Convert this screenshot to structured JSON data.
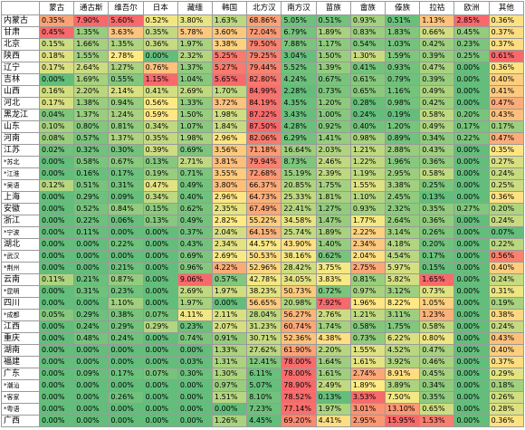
{
  "table": {
    "columns": [
      "蒙古",
      "通古斯",
      "维吾尔",
      "日本",
      "藏缅",
      "韩国",
      "北方汉",
      "南方汉",
      "苗族",
      "畲族",
      "傣族",
      "拉祜",
      "欧洲",
      "其他"
    ],
    "rows": [
      {
        "label": "内蒙古",
        "cells": [
          "0.35%",
          "7.90%",
          "5.60%",
          "0.52%",
          "3.80%",
          "1.63%",
          "68.86%",
          "5.05%",
          "0.51%",
          "0.93%",
          "0.51%",
          "1.13%",
          "2.85%",
          "0.36%"
        ]
      },
      {
        "label": "甘肃",
        "cells": [
          "0.45%",
          "1.35%",
          "3.63%",
          "0.35%",
          "5.78%",
          "3.60%",
          "72.04%",
          "6.79%",
          "1.89%",
          "0.83%",
          "1.83%",
          "0.66%",
          "0.45%",
          "0.37%"
        ]
      },
      {
        "label": "北京",
        "cells": [
          "0.15%",
          "1.66%",
          "1.35%",
          "0.36%",
          "1.97%",
          "3.38%",
          "79.50%",
          "7.88%",
          "1.17%",
          "0.54%",
          "1.03%",
          "0.42%",
          "0.23%",
          "0.37%"
        ]
      },
      {
        "label": "陕西",
        "cells": [
          "0.18%",
          "1.55%",
          "2.78%",
          "0.00%",
          "2.32%",
          "5.25%",
          "79.25%",
          "3.04%",
          "1.50%",
          "1.30%",
          "1.59%",
          "0.39%",
          "0.25%",
          "0.61%"
        ]
      },
      {
        "label": "辽宁",
        "cells": [
          "0.17%",
          "2.64%",
          "1.27%",
          "0.76%",
          "1.37%",
          "5.27%",
          "79.44%",
          "5.52%",
          "1.39%",
          "0.41%",
          "0.93%",
          "0.47%",
          "0.00%",
          "0.36%"
        ]
      },
      {
        "label": "吉林",
        "cells": [
          "0.00%",
          "1.69%",
          "0.55%",
          "1.15%",
          "1.04%",
          "5.65%",
          "82.80%",
          "4.24%",
          "0.67%",
          "0.61%",
          "0.79%",
          "0.39%",
          "0.00%",
          "0.40%"
        ]
      },
      {
        "label": "山西",
        "cells": [
          "0.16%",
          "2.20%",
          "2.14%",
          "0.41%",
          "2.69%",
          "1.70%",
          "84.99%",
          "2.28%",
          "0.73%",
          "0.65%",
          "1.16%",
          "0.49%",
          "0.00%",
          "0.41%"
        ]
      },
      {
        "label": "河北",
        "cells": [
          "0.17%",
          "1.38%",
          "0.94%",
          "0.56%",
          "1.33%",
          "3.72%",
          "84.19%",
          "4.35%",
          "1.20%",
          "0.28%",
          "0.98%",
          "0.42%",
          "0.00%",
          "0.47%"
        ]
      },
      {
        "label": "黑龙江",
        "cells": [
          "0.04%",
          "1.37%",
          "1.24%",
          "0.59%",
          "1.50%",
          "1.98%",
          "87.22%",
          "3.43%",
          "1.00%",
          "0.24%",
          "0.19%",
          "0.58%",
          "0.20%",
          "0.43%"
        ]
      },
      {
        "label": "山东",
        "cells": [
          "0.10%",
          "0.80%",
          "0.81%",
          "0.34%",
          "1.07%",
          "1.84%",
          "87.50%",
          "4.28%",
          "0.92%",
          "0.40%",
          "1.20%",
          "0.49%",
          "0.17%",
          "0.17%"
        ]
      },
      {
        "label": "河南",
        "cells": [
          "0.08%",
          "0.57%",
          "1.37%",
          "0.35%",
          "1.98%",
          "2.96%",
          "82.06%",
          "6.29%",
          "1.41%",
          "0.98%",
          "0.89%",
          "0.34%",
          "0.22%",
          "0.47%"
        ]
      },
      {
        "label": "江苏",
        "cells": [
          "0.02%",
          "0.32%",
          "0.30%",
          "0.39%",
          "0.69%",
          "3.56%",
          "71.18%",
          "16.64%",
          "2.03%",
          "1.21%",
          "2.88%",
          "0.43%",
          "0.00%",
          "0.35%"
        ]
      },
      {
        "label": "*苏北",
        "cells": [
          "0.00%",
          "0.58%",
          "0.67%",
          "0.13%",
          "2.71%",
          "3.81%",
          "79.94%",
          "8.73%",
          "2.46%",
          "1.22%",
          "1.96%",
          "0.36%",
          "0.00%",
          "0.27%"
        ]
      },
      {
        "label": "*江淮",
        "cells": [
          "0.00%",
          "0.16%",
          "0.17%",
          "0.19%",
          "0.71%",
          "3.55%",
          "72.68%",
          "15.19%",
          "2.39%",
          "1.19%",
          "2.95%",
          "0.58%",
          "0.00%",
          "0.24%"
        ]
      },
      {
        "label": "*吴语",
        "cells": [
          "0.12%",
          "0.51%",
          "0.31%",
          "0.47%",
          "0.49%",
          "3.80%",
          "66.37%",
          "20.85%",
          "1.75%",
          "1.55%",
          "3.38%",
          "0.25%",
          "0.00%",
          "0.25%"
        ]
      },
      {
        "label": "上海",
        "cells": [
          "0.00%",
          "0.29%",
          "0.09%",
          "0.34%",
          "0.40%",
          "2.96%",
          "64.73%",
          "25.33%",
          "1.81%",
          "1.10%",
          "2.45%",
          "0.13%",
          "0.00%",
          "0.36%"
        ]
      },
      {
        "label": "安徽",
        "cells": [
          "0.00%",
          "0.52%",
          "0.84%",
          "0.15%",
          "0.62%",
          "2.35%",
          "67.49%",
          "22.41%",
          "1.27%",
          "0.93%",
          "2.32%",
          "0.35%",
          "0.27%",
          "0.20%"
        ]
      },
      {
        "label": "浙江",
        "cells": [
          "0.00%",
          "0.22%",
          "0.06%",
          "0.13%",
          "0.49%",
          "2.82%",
          "55.22%",
          "34.58%",
          "1.47%",
          "1.77%",
          "2.64%",
          "0.36%",
          "0.00%",
          "0.24%"
        ]
      },
      {
        "label": "*宁波",
        "cells": [
          "0.00%",
          "0.11%",
          "0.00%",
          "0.00%",
          "0.37%",
          "2.04%",
          "64.15%",
          "25.74%",
          "1.89%",
          "2.22%",
          "3.14%",
          "0.26%",
          "0.00%",
          "0.07%"
        ]
      },
      {
        "label": "湖北",
        "cells": [
          "0.00%",
          "0.00%",
          "0.22%",
          "0.00%",
          "0.43%",
          "2.34%",
          "44.57%",
          "43.90%",
          "1.40%",
          "2.34%",
          "4.18%",
          "0.20%",
          "0.00%",
          "0.22%"
        ]
      },
      {
        "label": "*武汉",
        "cells": [
          "0.00%",
          "0.00%",
          "0.00%",
          "0.00%",
          "0.69%",
          "2.69%",
          "50.53%",
          "38.16%",
          "0.62%",
          "2.04%",
          "4.54%",
          "0.17%",
          "0.00%",
          "0.56%"
        ]
      },
      {
        "label": "*荆州",
        "cells": [
          "0.00%",
          "0.00%",
          "0.21%",
          "0.00%",
          "0.96%",
          "4.22%",
          "52.96%",
          "28.42%",
          "3.75%",
          "2.75%",
          "5.97%",
          "0.15%",
          "0.00%",
          "0.40%"
        ]
      },
      {
        "label": "云南",
        "cells": [
          "0.11%",
          "0.21%",
          "0.87%",
          "0.00%",
          "9.06%",
          "0.57%",
          "42.78%",
          "34.05%",
          "3.83%",
          "0.81%",
          "5.82%",
          "1.65%",
          "0.00%",
          "0.24%"
        ]
      },
      {
        "label": "*昆明",
        "cells": [
          "0.00%",
          "0.31%",
          "0.23%",
          "0.00%",
          "2.69%",
          "1.97%",
          "38.23%",
          "50.73%",
          "0.72%",
          "0.97%",
          "3.12%",
          "0.73%",
          "0.00%",
          "0.31%"
        ]
      },
      {
        "label": "四川",
        "cells": [
          "0.00%",
          "0.00%",
          "1.10%",
          "0.00%",
          "1.97%",
          "0.00%",
          "56.65%",
          "20.98%",
          "7.92%",
          "1.96%",
          "8.22%",
          "1.05%",
          "0.00%",
          "0.19%"
        ]
      },
      {
        "label": "*成都",
        "cells": [
          "0.05%",
          "0.29%",
          "0.38%",
          "0.07%",
          "4.11%",
          "2.11%",
          "28.04%",
          "56.27%",
          "2.76%",
          "1.21%",
          "3.11%",
          "1.23%",
          "0.00%",
          "0.38%"
        ]
      },
      {
        "label": "江西",
        "cells": [
          "0.00%",
          "0.24%",
          "0.29%",
          "0.29%",
          "0.23%",
          "2.07%",
          "31.23%",
          "60.74%",
          "1.74%",
          "0.58%",
          "1.75%",
          "0.58%",
          "0.00%",
          "0.24%"
        ]
      },
      {
        "label": "重庆",
        "cells": [
          "0.00%",
          "0.48%",
          "0.24%",
          "0.00%",
          "0.74%",
          "0.91%",
          "30.71%",
          "52.36%",
          "4.38%",
          "0.73%",
          "6.22%",
          "0.80%",
          "0.00%",
          "0.43%"
        ]
      },
      {
        "label": "湖南",
        "cells": [
          "0.00%",
          "0.00%",
          "0.00%",
          "0.00%",
          "0.00%",
          "1.33%",
          "27.62%",
          "61.90%",
          "2.20%",
          "1.55%",
          "4.52%",
          "0.47%",
          "0.00%",
          "0.40%"
        ]
      },
      {
        "label": "福建",
        "cells": [
          "0.00%",
          "0.00%",
          "0.00%",
          "0.00%",
          "0.03%",
          "1.31%",
          "12.41%",
          "78.00%",
          "1.64%",
          "1.61%",
          "3.92%",
          "0.46%",
          "0.00%",
          "0.37%"
        ]
      },
      {
        "label": "广东",
        "cells": [
          "0.00%",
          "0.09%",
          "0.17%",
          "0.07%",
          "0.30%",
          "1.30%",
          "6.11%",
          "78.00%",
          "1.61%",
          "2.74%",
          "8.91%",
          "0.45%",
          "0.00%",
          "0.29%"
        ]
      },
      {
        "label": "*潮汕",
        "cells": [
          "0.00%",
          "0.00%",
          "0.00%",
          "0.00%",
          "0.00%",
          "0.97%",
          "5.07%",
          "78.90%",
          "2.49%",
          "1.89%",
          "3.89%",
          "0.34%",
          "0.00%",
          "0.18%"
        ]
      },
      {
        "label": "*客家",
        "cells": [
          "0.00%",
          "0.00%",
          "0.26%",
          "0.00%",
          "0.00%",
          "1.51%",
          "8.10%",
          "78.52%",
          "0.13%",
          "3.53%",
          "7.50%",
          "0.35%",
          "0.00%",
          "0.26%"
        ]
      },
      {
        "label": "*粤语",
        "cells": [
          "0.00%",
          "0.00%",
          "0.00%",
          "0.00%",
          "0.00%",
          "0.00%",
          "7.23%",
          "77.14%",
          "1.97%",
          "3.01%",
          "13.10%",
          "0.65%",
          "0.00%",
          "0.28%"
        ]
      },
      {
        "label": "广西",
        "cells": [
          "0.00%",
          "0.00%",
          "0.00%",
          "0.00%",
          "0.00%",
          "1.26%",
          "4.45%",
          "69.20%",
          "4.41%",
          "2.95%",
          "15.95%",
          "1.53%",
          "0.00%",
          "0.36%"
        ]
      }
    ]
  }
}
